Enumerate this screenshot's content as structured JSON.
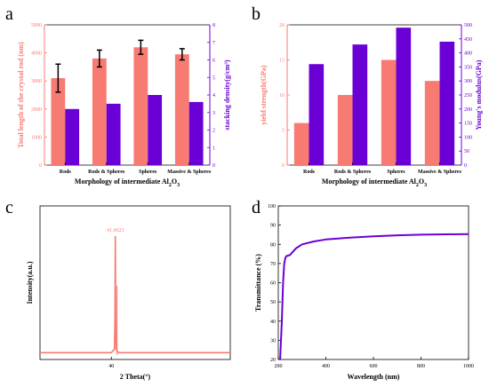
{
  "chart_data": [
    {
      "panel": "a",
      "type": "bar",
      "categories": [
        "Rods",
        "Rods & Spheres",
        "Spheres",
        "Massive & Spheres"
      ],
      "xlabel": "Morphology of intermediate Al",
      "xlabel_sub": "2",
      "xlabel_tail": "O",
      "xlabel_sub2": "3",
      "ylabel_left": "Total length of the crystal rod (nm)",
      "ylabel_right": "stacking density(g/cm",
      "ylabel_right_sup": "3",
      "ylabel_right_tail": ")",
      "ylim_left": [
        0,
        5000
      ],
      "ylim_right": [
        0,
        8
      ],
      "yticks_left": [
        "0",
        "1000",
        "2000",
        "3000",
        "4000",
        "5000"
      ],
      "yticks_right": [
        "0",
        "1",
        "2",
        "3",
        "4",
        "5",
        "6",
        "7",
        "8"
      ],
      "series": [
        {
          "axis": "left",
          "values": [
            3100,
            3800,
            4200,
            3950
          ],
          "errors": [
            500,
            300,
            250,
            200
          ]
        },
        {
          "axis": "right",
          "values": [
            3.2,
            3.5,
            4.0,
            3.6
          ]
        }
      ],
      "colors": [
        "#f77b72",
        "#6b00d6"
      ],
      "grid": false
    },
    {
      "panel": "b",
      "type": "bar",
      "categories": [
        "Rods",
        "Rods & Spheres",
        "Spheres",
        "Massive & Spheres"
      ],
      "xlabel": "Morphology of intermediate Al",
      "xlabel_sub": "2",
      "xlabel_tail": "O",
      "xlabel_sub2": "3",
      "ylabel_left": "yield strength(GPa)",
      "ylabel_right": "Young's modulus(GPa)",
      "ylim_left": [
        0,
        20
      ],
      "ylim_right": [
        0,
        500
      ],
      "yticks_left": [
        "0",
        "5",
        "10",
        "15",
        "20"
      ],
      "yticks_right": [
        "0",
        "50",
        "100",
        "150",
        "200",
        "250",
        "300",
        "350",
        "400",
        "450",
        "500"
      ],
      "series": [
        {
          "axis": "left",
          "values": [
            6,
            10,
            15,
            12
          ]
        },
        {
          "axis": "right",
          "values": [
            360,
            430,
            490,
            440
          ]
        }
      ],
      "colors": [
        "#f77b72",
        "#6b00d6"
      ],
      "grid": false
    },
    {
      "panel": "c",
      "type": "line",
      "xlabel": "2 Theta(°)",
      "ylabel": "Intensity(a.u.)",
      "xlim": [
        10,
        90
      ],
      "xticks": [
        "40"
      ],
      "xtick_values": [
        40
      ],
      "peak_label": "41.6623",
      "x": [
        10,
        40,
        41.3,
        41.5,
        41.6623,
        41.8,
        42.0,
        43,
        90
      ],
      "y": [
        0.02,
        0.02,
        0.05,
        0.3,
        1.0,
        0.4,
        0.05,
        0.02,
        0.02
      ],
      "color": "#f77b72",
      "grid": false
    },
    {
      "panel": "d",
      "type": "line",
      "xlabel": "Wavelength (nm)",
      "ylabel": "Transmittance (%)",
      "xlim": [
        200,
        1000
      ],
      "ylim": [
        20,
        100
      ],
      "xticks": [
        "200",
        "400",
        "600",
        "800",
        "1000"
      ],
      "yticks": [
        "20",
        "30",
        "40",
        "50",
        "60",
        "70",
        "80",
        "90",
        "100"
      ],
      "x": [
        208,
        215,
        220,
        225,
        230,
        235,
        240,
        250,
        260,
        275,
        300,
        350,
        400,
        500,
        600,
        700,
        800,
        900,
        1000
      ],
      "y": [
        20,
        40,
        60,
        70,
        73,
        74,
        74,
        74.5,
        76,
        78,
        80,
        81.5,
        82.5,
        83.5,
        84.2,
        84.7,
        85,
        85.2,
        85.3
      ],
      "color": "#6b00d6",
      "grid": false
    }
  ],
  "panels": {
    "a": "a",
    "b": "b",
    "c": "c",
    "d": "d"
  }
}
